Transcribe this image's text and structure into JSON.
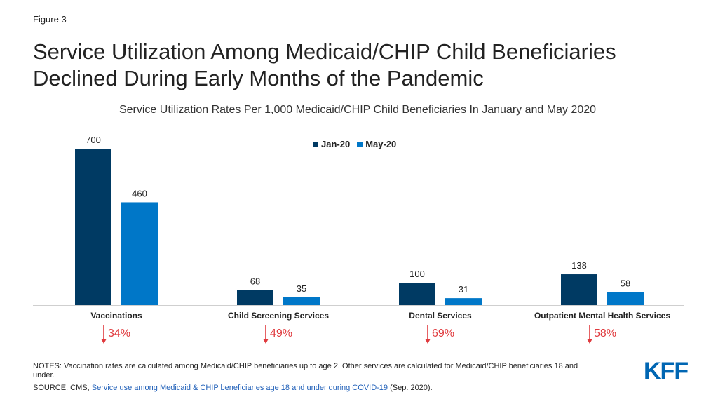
{
  "figure_label": "Figure 3",
  "title_line1": "Service Utilization Among Medicaid/CHIP Child Beneficiaries",
  "title_line2": "Declined During Early Months of the Pandemic",
  "chart_data": {
    "type": "bar",
    "title": "Service Utilization Rates Per 1,000 Medicaid/CHIP Child Beneficiaries In January and May 2020",
    "categories": [
      "Vaccinations",
      "Child Screening Services",
      "Dental Services",
      "Outpatient Mental Health Services"
    ],
    "series": [
      {
        "name": "Jan-20",
        "values": [
          700,
          68,
          100,
          138
        ],
        "color": "#003a63"
      },
      {
        "name": "May-20",
        "values": [
          460,
          35,
          31,
          58
        ],
        "color": "#0077c8"
      }
    ],
    "changes": [
      "34%",
      "49%",
      "69%",
      "58%"
    ],
    "change_color": "#e03a3e",
    "ylim": [
      0,
      700
    ],
    "grid": false,
    "legend_position": "top-center"
  },
  "notes": "NOTES: Vaccination rates are calculated among Medicaid/CHIP beneficiaries up to age 2. Other services are calculated for Medicaid/CHIP beneficiaries 18 and under.",
  "source_prefix": "SOURCE: CMS, ",
  "source_link": "Service use among Medicaid & CHIP beneficiaries age 18 and under during COVID-19",
  "source_suffix": " (Sep. 2020).",
  "logo_text": "KFF"
}
